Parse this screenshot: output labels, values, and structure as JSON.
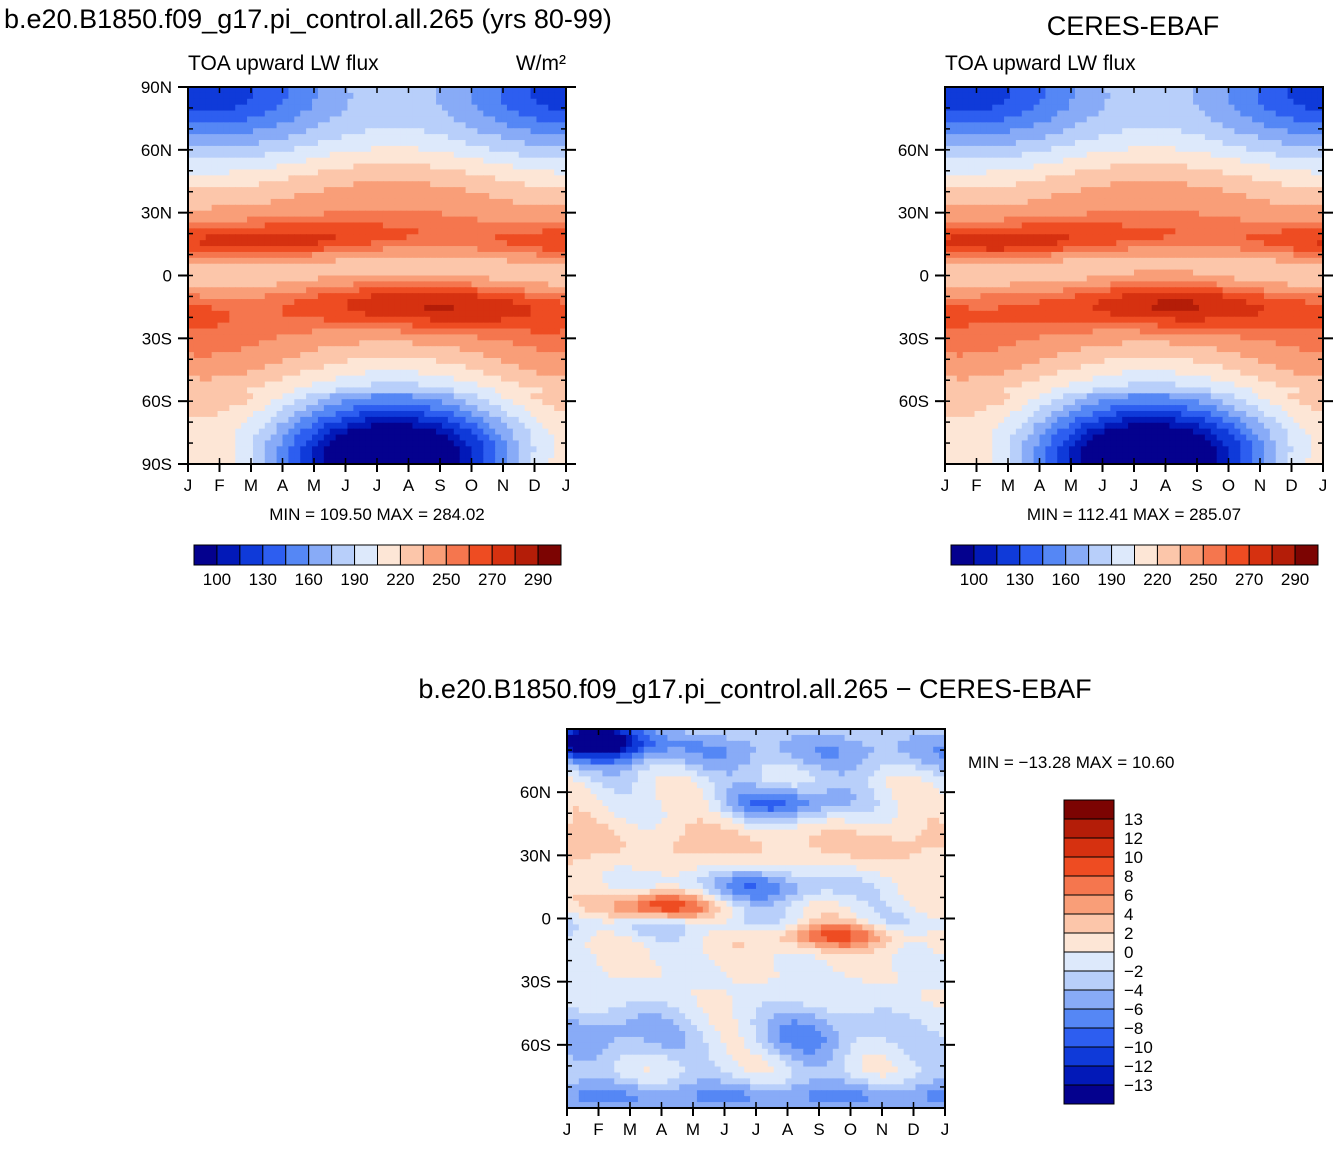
{
  "figure": {
    "main_title": "b.e20.B1850.f09_g17.pi_control.all.265 (yrs 80-99)",
    "obs_title": "CERES-EBAF",
    "diff_title": "b.e20.B1850.f09_g17.pi_control.all.265 − CERES-EBAF"
  },
  "chart_data": [
    {
      "id": "model",
      "type": "heatmap",
      "title": "b.e20.B1850.f09_g17.pi_control.all.265 (yrs 80-99)",
      "subtitle_left": "TOA upward LW flux",
      "subtitle_right": "W/m²",
      "xlabel": "",
      "ylabel": "",
      "x_ticks": [
        "J",
        "F",
        "M",
        "A",
        "M",
        "J",
        "J",
        "A",
        "S",
        "O",
        "N",
        "D",
        "J"
      ],
      "y_ticks": [
        "90N",
        "60N",
        "30N",
        "0",
        "30S",
        "60S",
        "90S"
      ],
      "y_tick_values": [
        90,
        60,
        30,
        0,
        -30,
        -60,
        -90
      ],
      "ylim": [
        -90,
        90
      ],
      "stats": "MIN =  109.50  MAX =  284.02",
      "colorbar": {
        "orientation": "horizontal",
        "labels": [
          "100",
          "130",
          "160",
          "190",
          "220",
          "250",
          "270",
          "290"
        ],
        "colors": [
          "#04018e",
          "#0219b8",
          "#0f3ad9",
          "#2d5ef0",
          "#5587f5",
          "#88abf7",
          "#b8cffa",
          "#dde9fb",
          "#fde6d6",
          "#fcc6aa",
          "#f99e78",
          "#f5764e",
          "#ee4c22",
          "#d63110",
          "#b41d08",
          "#7c0402"
        ]
      },
      "peaks": [
        {
          "month": 2.2,
          "lat": 15,
          "value": 283
        },
        {
          "month": 7.5,
          "lat": -13,
          "value": 284
        },
        {
          "month": 6.5,
          "lat": -80,
          "value": 110
        }
      ]
    },
    {
      "id": "obs",
      "type": "heatmap",
      "title": "CERES-EBAF",
      "subtitle_left": "TOA upward LW flux",
      "x_ticks": [
        "J",
        "F",
        "M",
        "A",
        "M",
        "J",
        "J",
        "A",
        "S",
        "O",
        "N",
        "D",
        "J"
      ],
      "y_ticks": [
        "60N",
        "30N",
        "0",
        "30S",
        "60S"
      ],
      "y_tick_values": [
        60,
        30,
        0,
        -30,
        -60
      ],
      "ylim": [
        -90,
        90
      ],
      "stats": "MIN =  112.41  MAX =  285.07",
      "colorbar": {
        "orientation": "horizontal",
        "labels": [
          "100",
          "130",
          "160",
          "190",
          "220",
          "250",
          "270",
          "290"
        ],
        "colors": [
          "#04018e",
          "#0219b8",
          "#0f3ad9",
          "#2d5ef0",
          "#5587f5",
          "#88abf7",
          "#b8cffa",
          "#dde9fb",
          "#fde6d6",
          "#fcc6aa",
          "#f99e78",
          "#f5764e",
          "#ee4c22",
          "#d63110",
          "#b41d08",
          "#7c0402"
        ]
      },
      "peaks": [
        {
          "month": 2.0,
          "lat": 15,
          "value": 285
        },
        {
          "month": 7.0,
          "lat": -13,
          "value": 283
        },
        {
          "month": 6.5,
          "lat": -80,
          "value": 112
        }
      ]
    },
    {
      "id": "diff",
      "type": "heatmap",
      "title": "b.e20.B1850.f09_g17.pi_control.all.265 − CERES-EBAF",
      "x_ticks": [
        "J",
        "F",
        "M",
        "A",
        "M",
        "J",
        "J",
        "A",
        "S",
        "O",
        "N",
        "D",
        "J"
      ],
      "y_ticks": [
        "60N",
        "30N",
        "0",
        "30S",
        "60S"
      ],
      "y_tick_values": [
        60,
        30,
        0,
        -30,
        -60
      ],
      "ylim": [
        -90,
        90
      ],
      "stats": "MIN = −13.28 MAX =   10.60",
      "colorbar": {
        "orientation": "vertical",
        "labels": [
          "13",
          "12",
          "10",
          "8",
          "6",
          "4",
          "2",
          "0",
          "−2",
          "−4",
          "−6",
          "−8",
          "−10",
          "−12",
          "−13"
        ],
        "colors": [
          "#7c0402",
          "#b41d08",
          "#d63110",
          "#ee4c22",
          "#f5764e",
          "#f99e78",
          "#fcc6aa",
          "#fde6d6",
          "#dde9fb",
          "#b8cffa",
          "#88abf7",
          "#5587f5",
          "#2d5ef0",
          "#0f3ad9",
          "#0219b8",
          "#04018e"
        ]
      },
      "anomalies": [
        {
          "month": 3.0,
          "lat": 6,
          "value": 9
        },
        {
          "month": 8.5,
          "lat": -7,
          "value": 8
        },
        {
          "month": 1.0,
          "lat": 85,
          "value": -13
        },
        {
          "month": 7.0,
          "lat": 55,
          "value": -8
        },
        {
          "month": 6.0,
          "lat": 15,
          "value": -6
        }
      ]
    }
  ]
}
